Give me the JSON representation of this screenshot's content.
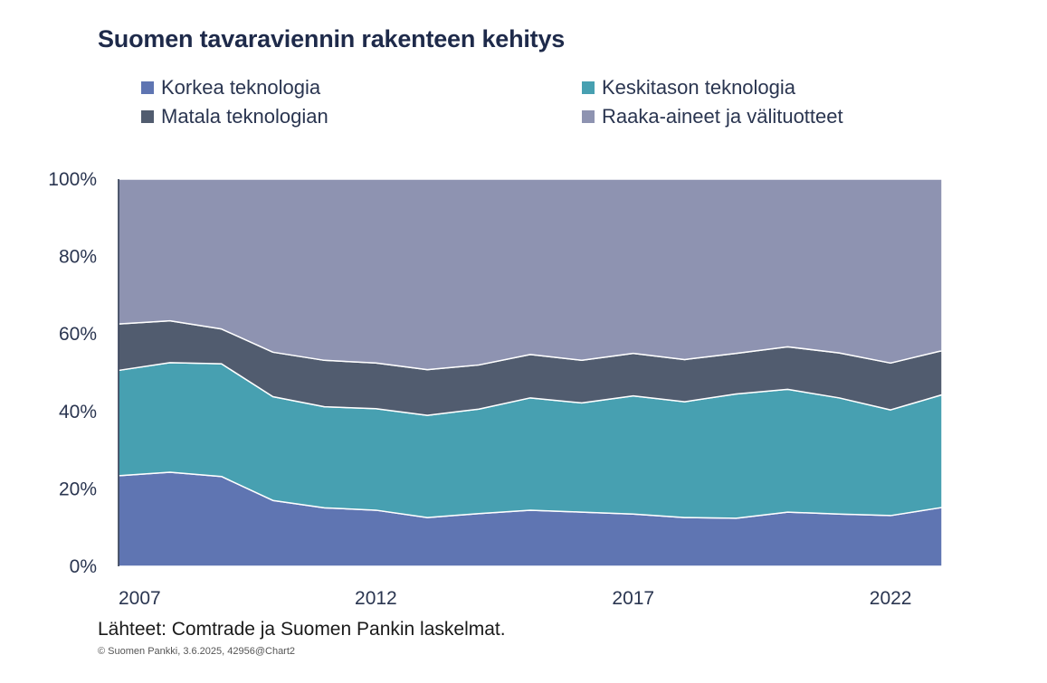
{
  "chart_data": {
    "type": "area",
    "stacked": true,
    "percent": true,
    "title": "Suomen tavaraviennin rakenteen kehitys",
    "x": [
      2007,
      2008,
      2009,
      2010,
      2011,
      2012,
      2013,
      2014,
      2015,
      2016,
      2017,
      2018,
      2019,
      2020,
      2021,
      2022,
      2023
    ],
    "x_tick_labels": [
      "2007",
      "2012",
      "2017",
      "2022"
    ],
    "y_tick_labels": [
      "0%",
      "20%",
      "40%",
      "60%",
      "80%",
      "100%"
    ],
    "ylim": [
      0,
      100
    ],
    "legend_placement": "top",
    "series": [
      {
        "name": "Korkea teknologia",
        "color": "#5f75b2",
        "values": [
          23.4,
          24.3,
          23.2,
          17.0,
          15.1,
          14.5,
          12.6,
          13.6,
          14.5,
          14.0,
          13.5,
          12.6,
          12.4,
          14.0,
          13.5,
          13.1,
          15.2
        ]
      },
      {
        "name": "Keskitason teknologia",
        "color": "#47a0b1",
        "values": [
          27.2,
          28.3,
          29.1,
          26.8,
          26.1,
          26.2,
          26.4,
          27.0,
          29.0,
          28.2,
          30.5,
          29.9,
          32.1,
          31.7,
          30.0,
          27.3,
          29.1
        ]
      },
      {
        "name": "Matala teknologian",
        "color": "#515c6f",
        "values": [
          12.0,
          10.8,
          9.0,
          11.5,
          12.0,
          11.8,
          11.8,
          11.4,
          11.2,
          11.0,
          11.0,
          10.9,
          10.5,
          11.0,
          11.6,
          12.1,
          11.4
        ]
      },
      {
        "name": "Raaka-aineet ja välituotteet",
        "color": "#8e93b1",
        "values": [
          37.4,
          36.6,
          38.7,
          44.7,
          46.8,
          47.5,
          49.2,
          48.0,
          45.3,
          46.8,
          45.0,
          46.6,
          45.0,
          43.3,
          44.9,
          47.5,
          44.3
        ]
      }
    ]
  },
  "footer": {
    "source": "Lähteet: Comtrade ja Suomen Pankin laskelmat.",
    "copyright": "© Suomen Pankki, 3.6.2025, 42956@Chart2"
  }
}
